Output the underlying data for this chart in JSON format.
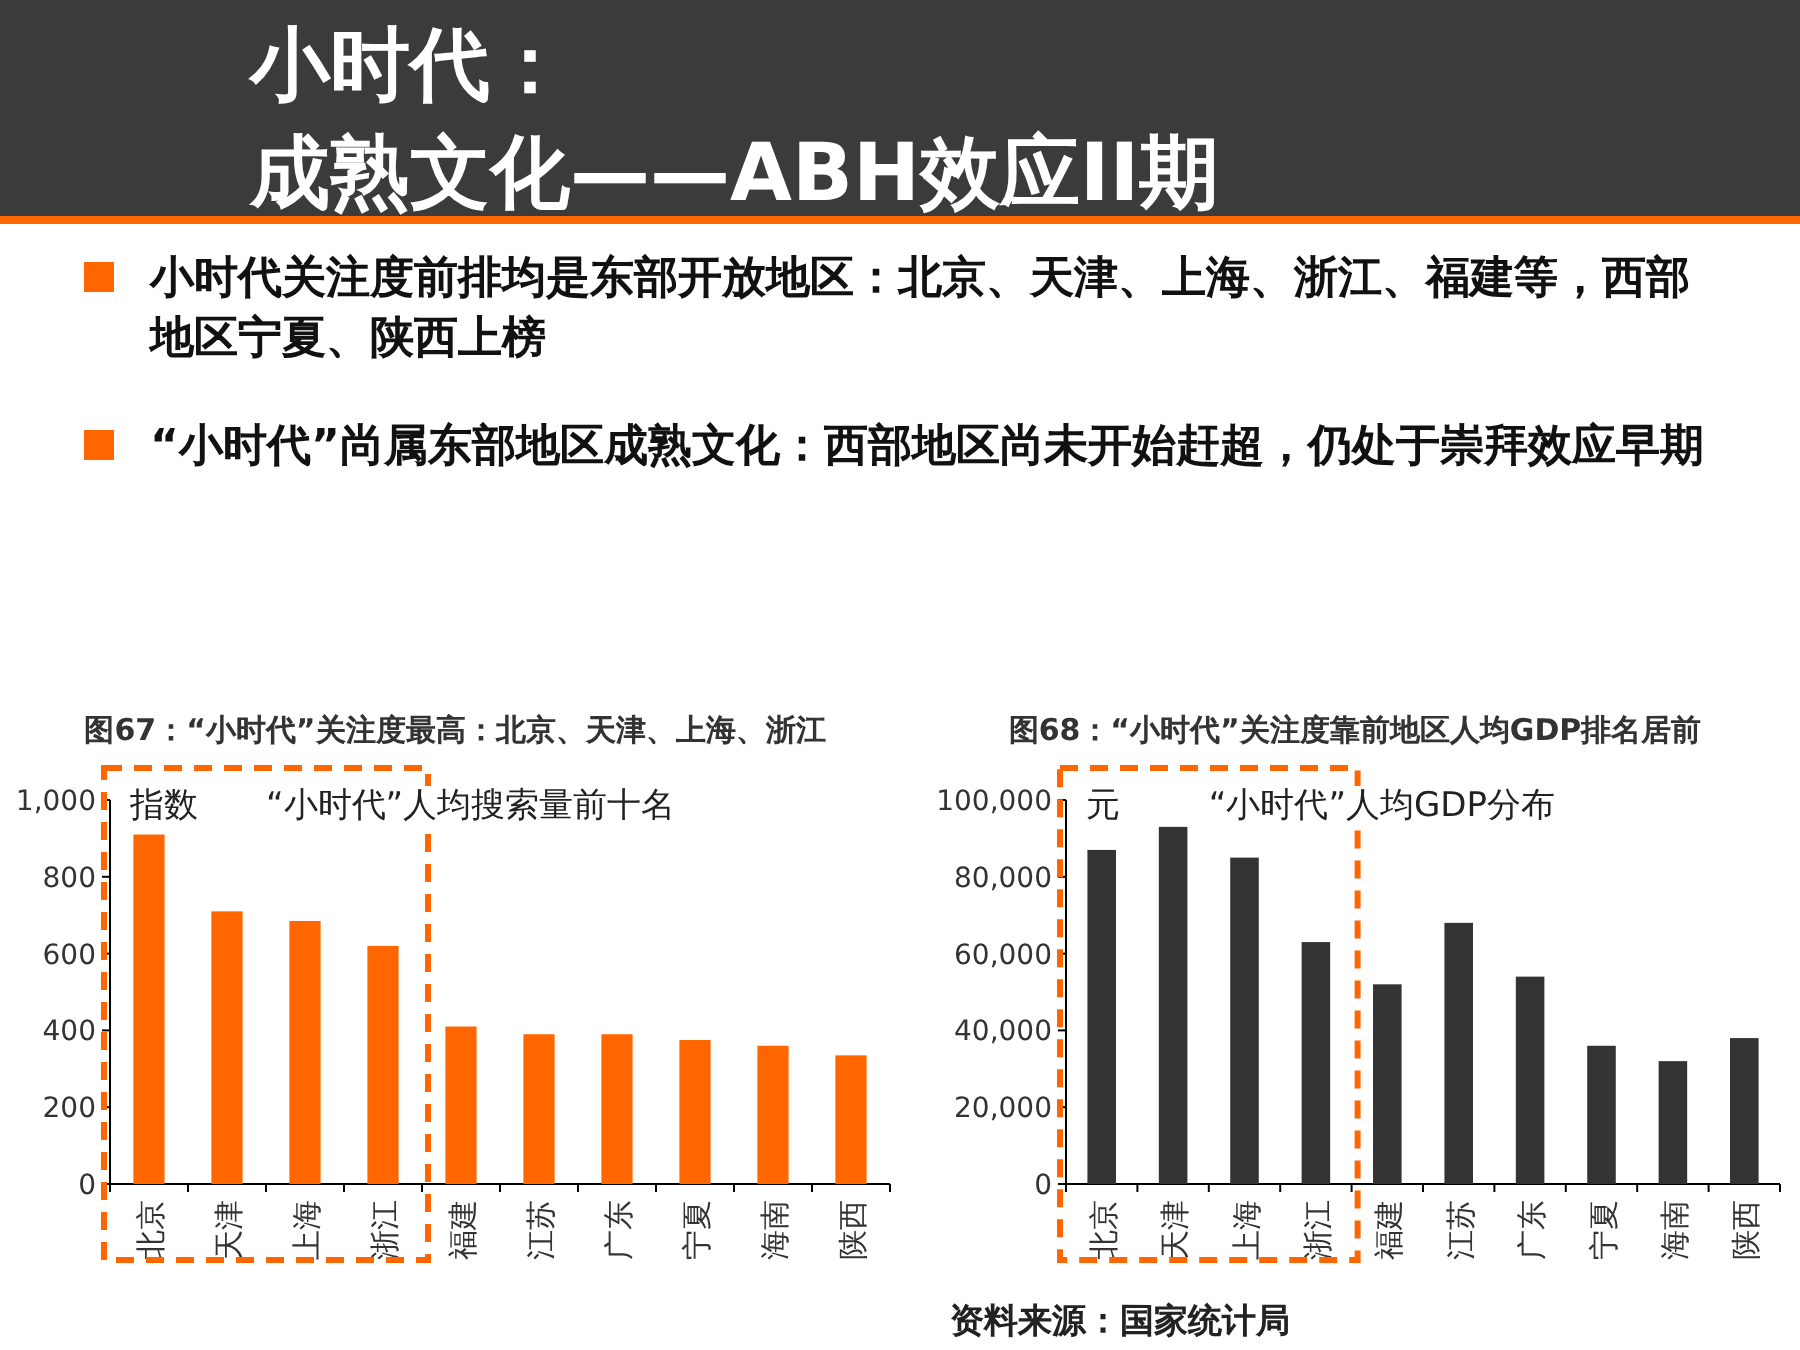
{
  "chart_data": [
    {
      "type": "other",
      "title": "小时代：",
      "subtitle": "成熟文化——ABH效应II期",
      "annotations": [
        "小时代关注度前排均是东部开放地区：北京、天津、上海、浙江、福建等，西部地区宁夏、陕西上榜",
        "“小时代”尚属东部地区成熟文化：西部地区尚未开始赶超，仍处于崇拜效应早期"
      ]
    },
    {
      "type": "bar",
      "title": "图67：“小时代”关注度最高：北京、天津、上海、浙江",
      "categories": [
        "北京",
        "天津",
        "上海",
        "浙江",
        "福建",
        "江苏",
        "广东",
        "宁夏",
        "海南",
        "陕西"
      ],
      "values": [
        910,
        710,
        685,
        620,
        410,
        390,
        390,
        375,
        360,
        335
      ],
      "color": "#ff6600",
      "ylim": [
        0,
        1000
      ],
      "yticks": [
        0,
        200,
        400,
        600,
        800,
        {
          "value": 1000,
          "label": "1,000"
        }
      ],
      "annotations": [
        "指数",
        "“小时代”人均搜索量前十名"
      ]
    },
    {
      "type": "bar",
      "title": "图68：“小时代”关注度靠前地区人均GDP排名居前",
      "categories": [
        "北京",
        "天津",
        "上海",
        "浙江",
        "福建",
        "江苏",
        "广东",
        "宁夏",
        "海南",
        "陕西"
      ],
      "values": [
        87000,
        93000,
        85000,
        63000,
        52000,
        68000,
        54000,
        36000,
        32000,
        38000
      ],
      "color": "#333333",
      "ylim": [
        0,
        100000
      ],
      "yticks": [
        0,
        {
          "value": 20000,
          "label": "20,000"
        },
        {
          "value": 40000,
          "label": "40,000"
        },
        {
          "value": 60000,
          "label": "60,000"
        },
        {
          "value": 80000,
          "label": "80,000"
        },
        {
          "value": 100000,
          "label": "100,000"
        }
      ],
      "annotations": [
        "元",
        "“小时代”人均GDP分布",
        "资料来源：国家统计局"
      ]
    }
  ]
}
